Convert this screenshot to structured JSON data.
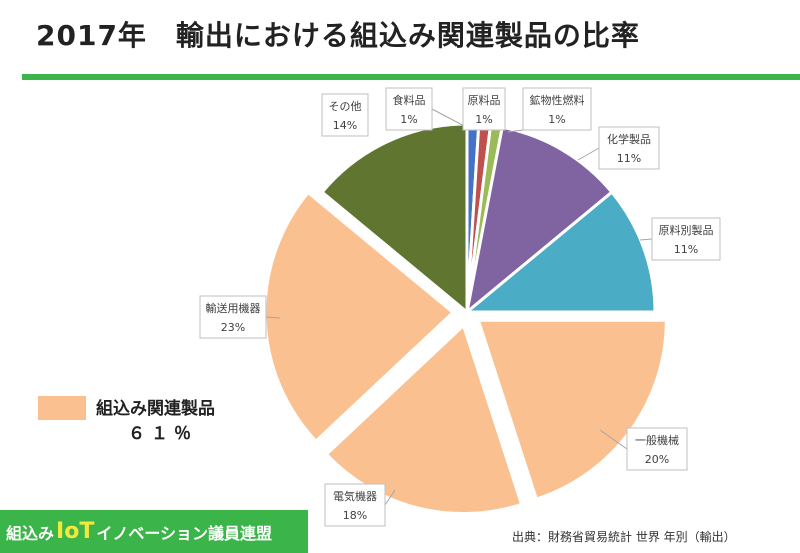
{
  "title": "2017年　輸出における組込み関連製品の比率",
  "legend": {
    "label": "組込み関連製品",
    "value": "６１％",
    "color": "#fac090"
  },
  "logo": {
    "part1": "組込み",
    "part2": "IoT",
    "part3": "イノベーション議員連盟"
  },
  "source": "出典：財務省貿易統計 世界 年別（輸出）",
  "chart_data": {
    "type": "pie",
    "title": "2017年　輸出における組込み関連製品の比率",
    "slices": [
      {
        "label": "食料品",
        "value": 1,
        "pct_label": "1%",
        "color": "#4472c4"
      },
      {
        "label": "原料品",
        "value": 1,
        "pct_label": "1%",
        "color": "#c0504d"
      },
      {
        "label": "鉱物性燃料",
        "value": 1,
        "pct_label": "1%",
        "color": "#9bbb59"
      },
      {
        "label": "化学製品",
        "value": 11,
        "pct_label": "11%",
        "color": "#8064a2"
      },
      {
        "label": "原料別製品",
        "value": 11,
        "pct_label": "11%",
        "color": "#4bacc6"
      },
      {
        "label": "一般機械",
        "value": 20,
        "pct_label": "20%",
        "color": "#fac090",
        "exploded": true
      },
      {
        "label": "電気機器",
        "value": 18,
        "pct_label": "18%",
        "color": "#fac090",
        "exploded": true
      },
      {
        "label": "輸送用機器",
        "value": 23,
        "pct_label": "23%",
        "color": "#fac090",
        "exploded": true
      },
      {
        "label": "その他",
        "value": 14,
        "pct_label": "14%",
        "color": "#5f7530"
      }
    ]
  }
}
